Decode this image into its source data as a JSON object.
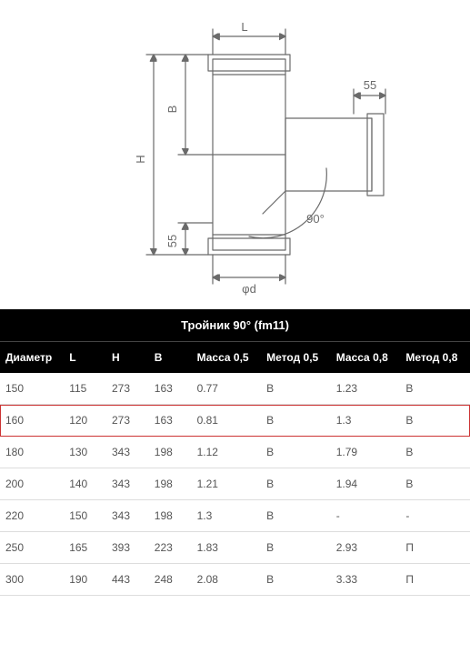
{
  "diagram": {
    "labels": {
      "L": "L",
      "H": "H",
      "B": "B",
      "phi_d": "φd",
      "angle": "90°",
      "top55": "55",
      "bot55": "55"
    },
    "stroke": "#6a6a6a",
    "stroke_thin": 1.2,
    "font": "13px Arial"
  },
  "table": {
    "title": "Тройник 90° (fm11)",
    "columns": [
      {
        "label": "Диаметр",
        "class": "col-d"
      },
      {
        "label": "L",
        "class": "col-l"
      },
      {
        "label": "H",
        "class": "col-h"
      },
      {
        "label": "B",
        "class": "col-b"
      },
      {
        "label": "Масса 0,5",
        "class": "col-m5"
      },
      {
        "label": "Метод 0,5",
        "class": "col-t5"
      },
      {
        "label": "Масса 0,8",
        "class": "col-m8"
      },
      {
        "label": "Метод 0,8",
        "class": "col-t8"
      }
    ],
    "highlight_index": 1,
    "rows": [
      [
        "150",
        "115",
        "273",
        "163",
        "0.77",
        "В",
        "1.23",
        "В"
      ],
      [
        "160",
        "120",
        "273",
        "163",
        "0.81",
        "В",
        "1.3",
        "В"
      ],
      [
        "180",
        "130",
        "343",
        "198",
        "1.12",
        "В",
        "1.79",
        "В"
      ],
      [
        "200",
        "140",
        "343",
        "198",
        "1.21",
        "В",
        "1.94",
        "В"
      ],
      [
        "220",
        "150",
        "343",
        "198",
        "1.3",
        "В",
        "-",
        "-"
      ],
      [
        "250",
        "165",
        "393",
        "223",
        "1.83",
        "В",
        "2.93",
        "П"
      ],
      [
        "300",
        "190",
        "443",
        "248",
        "2.08",
        "В",
        "3.33",
        "П"
      ]
    ]
  }
}
